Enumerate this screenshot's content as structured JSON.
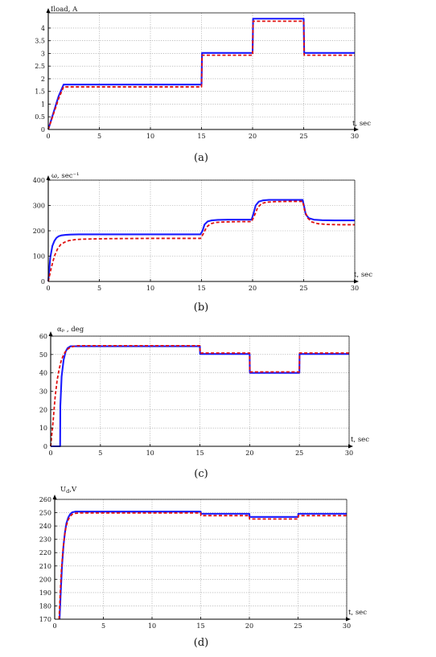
{
  "figure": {
    "panels": [
      {
        "id": "a",
        "caption": "(a)",
        "ylabel": "Iload, A",
        "xlabel": "t, sec"
      },
      {
        "id": "b",
        "caption": "(b)",
        "ylabel": "ω, sec⁻¹",
        "xlabel": "t, sec"
      },
      {
        "id": "c",
        "caption": "(c)",
        "ylabel": "αₚ , deg",
        "xlabel": "t, sec"
      },
      {
        "id": "d",
        "caption": "(d)",
        "ylabel": "U",
        "ylabel_sub": "d",
        "ylabel_tail": ",V",
        "xlabel": "t, sec"
      }
    ]
  },
  "colors": {
    "series_solid": "#1a1aff",
    "series_dashed": "#e01010",
    "axis": "#000000",
    "grid": "#9a9a9a"
  },
  "chart_data": [
    {
      "type": "line",
      "panel": "a",
      "xlim": [
        0,
        30
      ],
      "ylim": [
        0,
        4.6
      ],
      "xticks": [
        0,
        5,
        10,
        15,
        20,
        25,
        30
      ],
      "yticks": [
        0,
        0.5,
        1,
        1.5,
        2,
        2.5,
        3,
        3.5,
        4
      ],
      "ytick_labels": [
        "0",
        "0.5",
        "1",
        "1.5",
        "2",
        "2.5",
        "3",
        "3.5",
        "4"
      ],
      "grid": true,
      "series": [
        {
          "style": "solid",
          "x": [
            0,
            0.5,
            1.0,
            1.5,
            15.0,
            15.05,
            20.0,
            20.05,
            25.0,
            25.05,
            30
          ],
          "y": [
            0,
            0.65,
            1.3,
            1.77,
            1.77,
            3.02,
            3.02,
            4.37,
            4.37,
            3.02,
            3.02
          ]
        },
        {
          "style": "dashed",
          "x": [
            0,
            0.5,
            1.0,
            1.5,
            15.0,
            15.05,
            20.0,
            20.05,
            25.0,
            25.05,
            30
          ],
          "y": [
            0,
            0.6,
            1.2,
            1.68,
            1.68,
            2.93,
            2.93,
            4.27,
            4.27,
            2.93,
            2.93
          ]
        }
      ]
    },
    {
      "type": "line",
      "panel": "b",
      "xlim": [
        0,
        30
      ],
      "ylim": [
        0,
        400
      ],
      "xticks": [
        0,
        5,
        10,
        15,
        20,
        25,
        30
      ],
      "yticks": [
        0,
        100,
        200,
        300,
        400
      ],
      "grid": true,
      "series": [
        {
          "style": "solid",
          "x": [
            0,
            0.2,
            0.4,
            0.6,
            0.8,
            1.0,
            1.3,
            1.7,
            2.2,
            3,
            4,
            6,
            10,
            14.9,
            15.1,
            15.3,
            15.6,
            16.0,
            16.6,
            17.5,
            19.9,
            20.1,
            20.3,
            20.6,
            21.0,
            21.6,
            22.5,
            24.9,
            25.05,
            25.2,
            25.5,
            26.0,
            26.8,
            28,
            30
          ],
          "y": [
            0,
            95,
            140,
            160,
            172,
            178,
            182,
            184,
            185,
            186,
            186,
            186,
            186,
            186,
            200,
            225,
            237,
            241,
            243,
            244,
            244,
            270,
            300,
            315,
            320,
            322,
            322,
            322,
            295,
            265,
            250,
            244,
            242,
            241,
            241
          ]
        },
        {
          "style": "dashed",
          "x": [
            0,
            0.3,
            0.6,
            0.9,
            1.2,
            1.6,
            2.0,
            2.6,
            3.4,
            4.5,
            6,
            10,
            14.9,
            15.2,
            15.5,
            15.9,
            16.4,
            17.2,
            18.5,
            19.9,
            20.2,
            20.5,
            20.9,
            21.4,
            22.2,
            23.5,
            24.9,
            25.1,
            25.4,
            25.8,
            26.4,
            27.3,
            28.5,
            30
          ],
          "y": [
            0,
            55,
            100,
            128,
            145,
            155,
            161,
            165,
            167,
            168,
            169,
            170,
            170,
            190,
            215,
            228,
            233,
            235,
            236,
            236,
            262,
            292,
            308,
            313,
            315,
            316,
            316,
            280,
            250,
            235,
            228,
            225,
            224,
            224
          ]
        }
      ]
    },
    {
      "type": "line",
      "panel": "c",
      "xlim": [
        0,
        30
      ],
      "ylim": [
        0,
        60
      ],
      "xticks": [
        0,
        5,
        10,
        15,
        20,
        25,
        30
      ],
      "yticks": [
        0,
        10,
        20,
        30,
        40,
        50,
        60
      ],
      "grid": true,
      "series": [
        {
          "style": "solid",
          "x": [
            0,
            0.95,
            0.97,
            1.1,
            1.3,
            1.5,
            1.7,
            2.0,
            2.5,
            15.0,
            15.02,
            20.0,
            20.02,
            25.0,
            25.02,
            30
          ],
          "y": [
            0,
            0,
            22,
            38,
            47,
            51.5,
            53.5,
            54.5,
            54.5,
            54.5,
            50.3,
            50.3,
            40.0,
            40.0,
            50.3,
            50.3
          ]
        },
        {
          "style": "dashed",
          "x": [
            0,
            0.25,
            0.45,
            0.65,
            0.85,
            1.05,
            1.3,
            1.6,
            2.0,
            2.6,
            15.0,
            15.02,
            20.0,
            20.02,
            25.0,
            25.02,
            30
          ],
          "y": [
            0,
            14,
            27,
            36,
            42,
            46.5,
            50,
            52.5,
            54,
            54.8,
            54.8,
            50.8,
            50.8,
            40.5,
            40.5,
            50.8,
            50.8
          ]
        }
      ]
    },
    {
      "type": "line",
      "panel": "d",
      "xlim": [
        0,
        30
      ],
      "ylim": [
        170,
        260
      ],
      "xticks": [
        0,
        5,
        10,
        15,
        20,
        25,
        30
      ],
      "yticks": [
        170,
        180,
        190,
        200,
        210,
        220,
        230,
        240,
        250,
        260
      ],
      "grid": true,
      "series": [
        {
          "style": "solid",
          "x": [
            0.5,
            0.62,
            0.75,
            0.9,
            1.05,
            1.2,
            1.4,
            1.6,
            1.8,
            2.1,
            2.5,
            15.0,
            15.02,
            20.0,
            20.02,
            25.0,
            25.02,
            30
          ],
          "y": [
            170,
            190,
            210,
            225,
            235,
            242,
            246.5,
            249,
            250.3,
            250.8,
            250.8,
            250.8,
            249.2,
            249.2,
            246.8,
            246.8,
            249.2,
            249.2
          ]
        },
        {
          "style": "dashed",
          "x": [
            0.45,
            0.57,
            0.7,
            0.85,
            1.0,
            1.15,
            1.35,
            1.55,
            1.8,
            2.1,
            2.5,
            15.0,
            15.02,
            20.0,
            20.02,
            25.0,
            25.02,
            30
          ],
          "y": [
            170,
            190,
            208,
            222,
            232,
            239,
            244,
            247,
            248.8,
            249.5,
            249.8,
            249.8,
            247.8,
            247.8,
            245.3,
            245.3,
            247.8,
            247.8
          ]
        }
      ]
    }
  ]
}
